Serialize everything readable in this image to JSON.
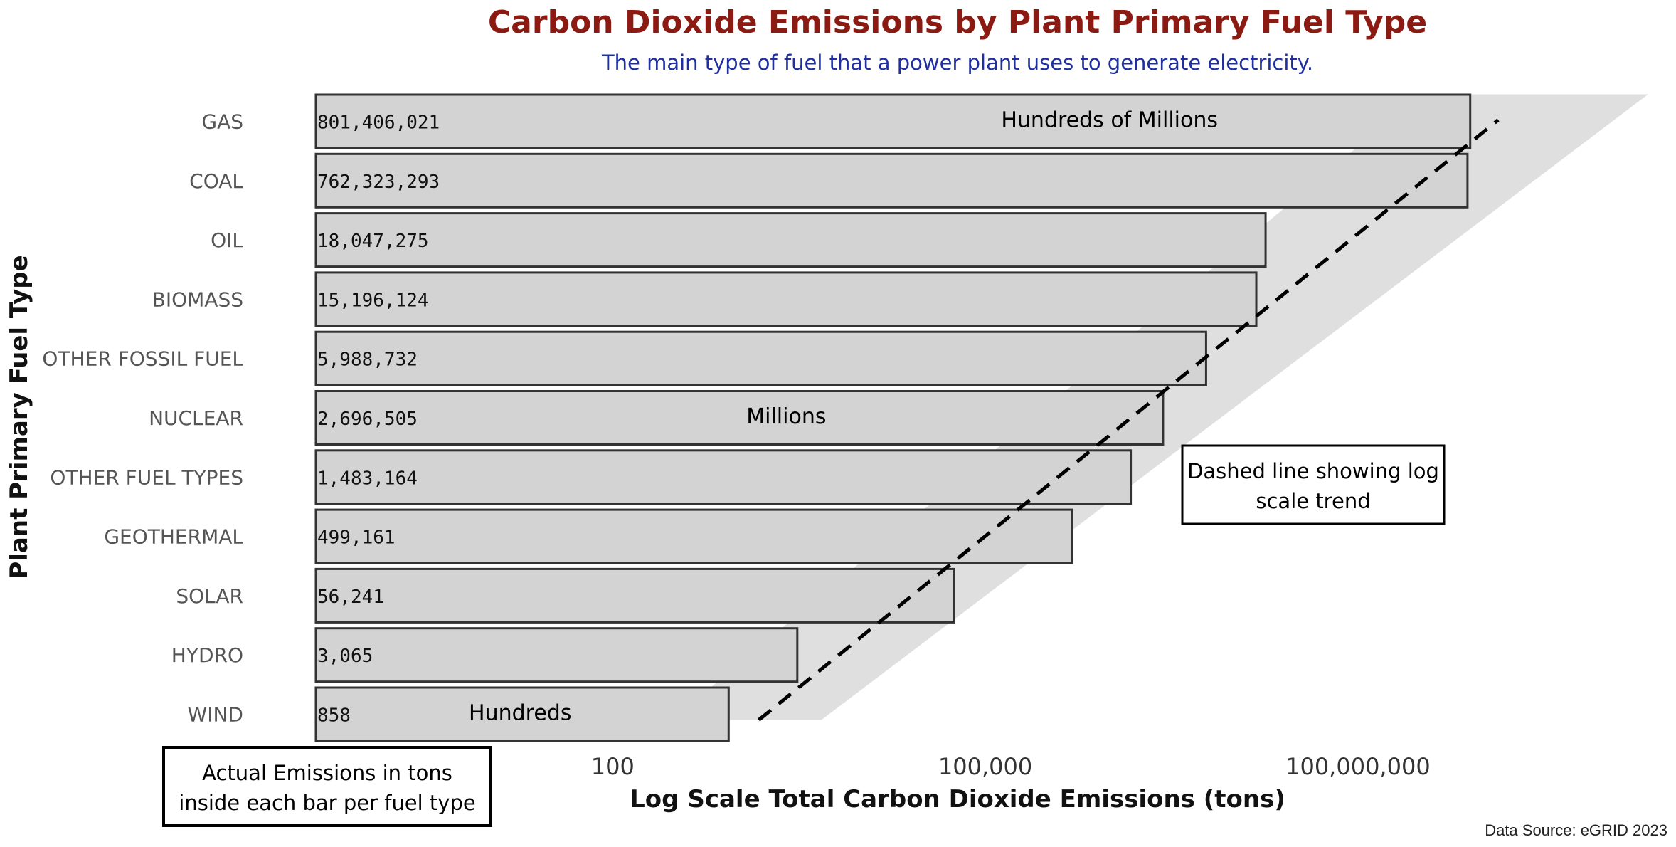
{
  "chart_data": {
    "type": "bar",
    "orientation": "horizontal",
    "title": "Carbon Dioxide Emissions by Plant Primary Fuel Type",
    "subtitle": "The main type of fuel that a power plant uses to generate electricity.",
    "xlabel": "Log Scale Total Carbon Dioxide Emissions (tons)",
    "ylabel": "Plant Primary Fuel Type",
    "x_scale": "log",
    "categories": [
      "GAS",
      "COAL",
      "OIL",
      "BIOMASS",
      "OTHER FOSSIL FUEL",
      "NUCLEAR",
      "OTHER FUEL TYPES",
      "GEOTHERMAL",
      "SOLAR",
      "HYDRO",
      "WIND"
    ],
    "values": [
      801406021,
      762323293,
      18047275,
      15196124,
      5988732,
      2696505,
      1483164,
      499161,
      56241,
      3065,
      858
    ],
    "value_labels": [
      "801,406,021",
      "762,323,293",
      "18,047,275",
      "15,196,124",
      "5,988,732",
      "2,696,505",
      "1,483,164",
      "499,161",
      "56,241",
      "3,065",
      "858"
    ],
    "x_ticks": [
      {
        "value": 100,
        "label": "100"
      },
      {
        "value": 100000,
        "label": "100,000"
      },
      {
        "value": 100000000,
        "label": "100,000,000"
      }
    ],
    "grid": false,
    "legend": "none",
    "annotations": [
      {
        "text": "Hundreds of Millions",
        "category": "GAS",
        "value": 1000000
      },
      {
        "text": "Millions",
        "category": "NUCLEAR",
        "value": 2500
      },
      {
        "text": "Hundreds",
        "category": "WIND",
        "value": 18
      }
    ],
    "trend_line": {
      "style": "dashed",
      "from": {
        "value": 1500,
        "category": "WIND"
      },
      "to": {
        "value": 2000000000,
        "category": "GAS"
      }
    },
    "trend_band": {
      "from": {
        "value": 300,
        "category": "WIND"
      },
      "to": {
        "value": 3000000000,
        "category": "GAS"
      }
    },
    "boxed_notes": [
      "Dashed line showing log scale trend",
      "Actual Emissions in tons inside each bar per fuel type"
    ],
    "source": "Data Source: eGRID 2023",
    "colors": {
      "bar_fill": "#d3d3d3",
      "bar_stroke": "#333333",
      "title": "#8b1a12",
      "subtitle": "#1f2fa0",
      "band": "#d9d9d9"
    }
  }
}
